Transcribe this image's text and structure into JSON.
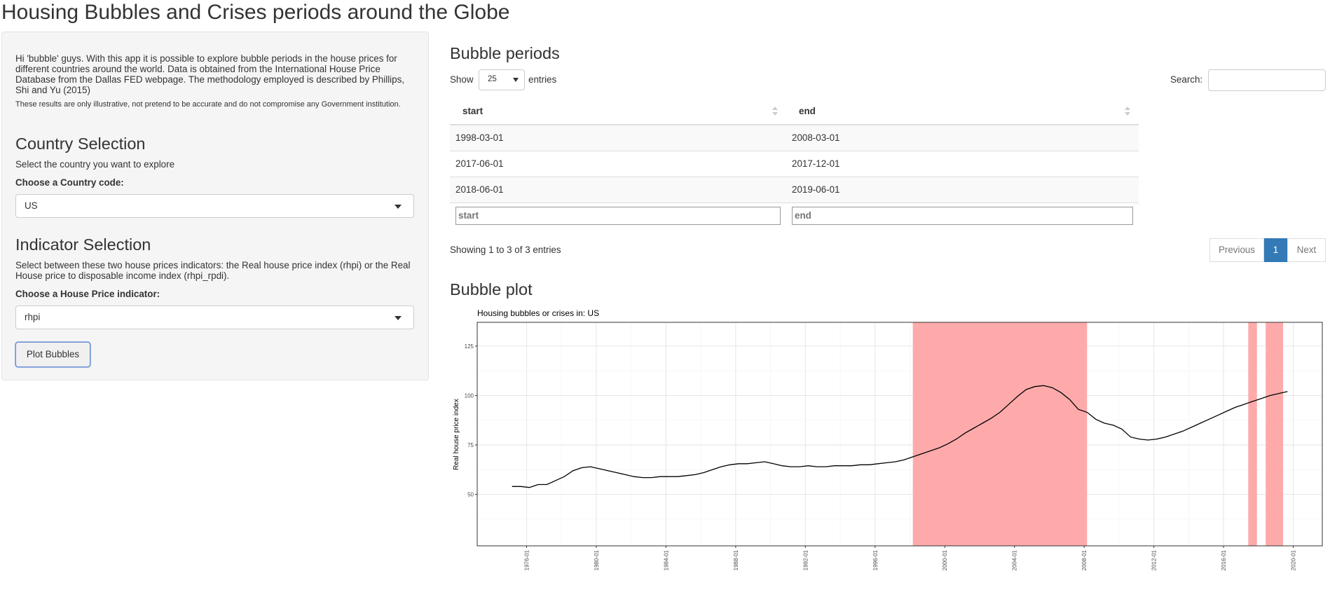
{
  "page": {
    "title": "Housing Bubbles and Crises periods around the Globe"
  },
  "sidebar": {
    "intro": "Hi 'bubble' guys. With this app it is possible to explore bubble periods in the house prices for different countries around the world. Data is obtained from the International House Price Database from the Dallas FED webpage. The methodology employed is described by Phillips, Shi and Yu (2015)",
    "disclaimer": "These results are only illustrative, not pretend to be accurate and do not compromise any Government institution.",
    "country": {
      "title": "Country Selection",
      "description": "Select the country you want to explore",
      "label": "Choose a Country code:",
      "value": "US"
    },
    "indicator": {
      "title": "Indicator Selection",
      "description": "Select between these two house prices indicators: the Real house price index (rhpi) or the Real House price to disposable income index (rhpi_rpdi).",
      "label": "Choose a House Price indicator:",
      "value": "rhpi"
    },
    "plot_button": "Plot Bubbles"
  },
  "table": {
    "title": "Bubble periods",
    "show_label": "Show",
    "length_value": "25",
    "entries_label": "entries",
    "search_label": "Search:",
    "columns": [
      "start",
      "end"
    ],
    "rows": [
      [
        "1998-03-01",
        "2008-03-01"
      ],
      [
        "2017-06-01",
        "2017-12-01"
      ],
      [
        "2018-06-01",
        "2019-06-01"
      ]
    ],
    "filter_placeholders": [
      "start",
      "end"
    ],
    "info": "Showing 1 to 3 of 3 entries",
    "pagination": {
      "previous": "Previous",
      "current": "1",
      "next": "Next"
    }
  },
  "plot": {
    "title": "Bubble plot"
  },
  "chart_data": {
    "type": "line",
    "title": "Housing bubbles or crises in: US",
    "xlabel": "",
    "ylabel": "Real house price index",
    "ylim": [
      24,
      137
    ],
    "xlim": [
      "1973-03-01",
      "2021-09-01"
    ],
    "yticks": [
      50,
      75,
      100,
      125
    ],
    "xticks": [
      "1976-01",
      "1980-01",
      "1984-01",
      "1988-01",
      "1992-01",
      "1996-01",
      "2000-01",
      "2004-01",
      "2008-01",
      "2012-01",
      "2016-01",
      "2020-01"
    ],
    "grid": true,
    "shaded_periods": [
      [
        "1998-03-01",
        "2008-03-01"
      ],
      [
        "2017-06-01",
        "2017-12-01"
      ],
      [
        "2018-06-01",
        "2019-06-01"
      ]
    ],
    "shade_color": "#ffaaaa",
    "line_color": "#000000",
    "series": [
      {
        "x": [
          "1975-03",
          "1975-09",
          "1976-03",
          "1976-09",
          "1977-03",
          "1977-09",
          "1978-03",
          "1978-09",
          "1979-03",
          "1979-09",
          "1980-03",
          "1980-09",
          "1981-03",
          "1981-09",
          "1982-03",
          "1982-09",
          "1983-03",
          "1983-09",
          "1984-03",
          "1984-09",
          "1985-03",
          "1985-09",
          "1986-03",
          "1986-09",
          "1987-03",
          "1987-09",
          "1988-03",
          "1988-09",
          "1989-03",
          "1989-09",
          "1990-03",
          "1990-09",
          "1991-03",
          "1991-09",
          "1992-03",
          "1992-09",
          "1993-03",
          "1993-09",
          "1994-03",
          "1994-09",
          "1995-03",
          "1995-09",
          "1996-03",
          "1996-09",
          "1997-03",
          "1997-09",
          "1998-03",
          "1998-09",
          "1999-03",
          "1999-09",
          "2000-03",
          "2000-09",
          "2001-03",
          "2001-09",
          "2002-03",
          "2002-09",
          "2003-03",
          "2003-09",
          "2004-03",
          "2004-09",
          "2005-03",
          "2005-09",
          "2006-03",
          "2006-09",
          "2007-03",
          "2007-09",
          "2008-03",
          "2008-09",
          "2009-03",
          "2009-09",
          "2010-03",
          "2010-09",
          "2011-03",
          "2011-09",
          "2012-03",
          "2012-09",
          "2013-03",
          "2013-09",
          "2014-03",
          "2014-09",
          "2015-03",
          "2015-09",
          "2016-03",
          "2016-09",
          "2017-03",
          "2017-09",
          "2018-03",
          "2018-09",
          "2019-03",
          "2019-09"
        ],
        "values": [
          54,
          54,
          53.5,
          55,
          55,
          57,
          59,
          62,
          63.5,
          64,
          63,
          62,
          61,
          60,
          59,
          58.5,
          58.5,
          59,
          59,
          59,
          59.5,
          60,
          61,
          62.5,
          64,
          65,
          65.5,
          65.5,
          66,
          66.5,
          65.5,
          64.5,
          64,
          64,
          64.5,
          64,
          64,
          64.5,
          64.5,
          64.5,
          65,
          65,
          65.5,
          66,
          66.5,
          67.5,
          69,
          70.5,
          72,
          73.5,
          75.5,
          78,
          81,
          83.5,
          86,
          88.5,
          91.5,
          95.5,
          99.5,
          103,
          104.5,
          105,
          104,
          101.5,
          98,
          93,
          91.5,
          88,
          86,
          85,
          83,
          79,
          78,
          77.5,
          78,
          79,
          80.5,
          82,
          84,
          86,
          88,
          90,
          92,
          94,
          95.5,
          97,
          98.5,
          100,
          101,
          102
        ]
      }
    ]
  }
}
